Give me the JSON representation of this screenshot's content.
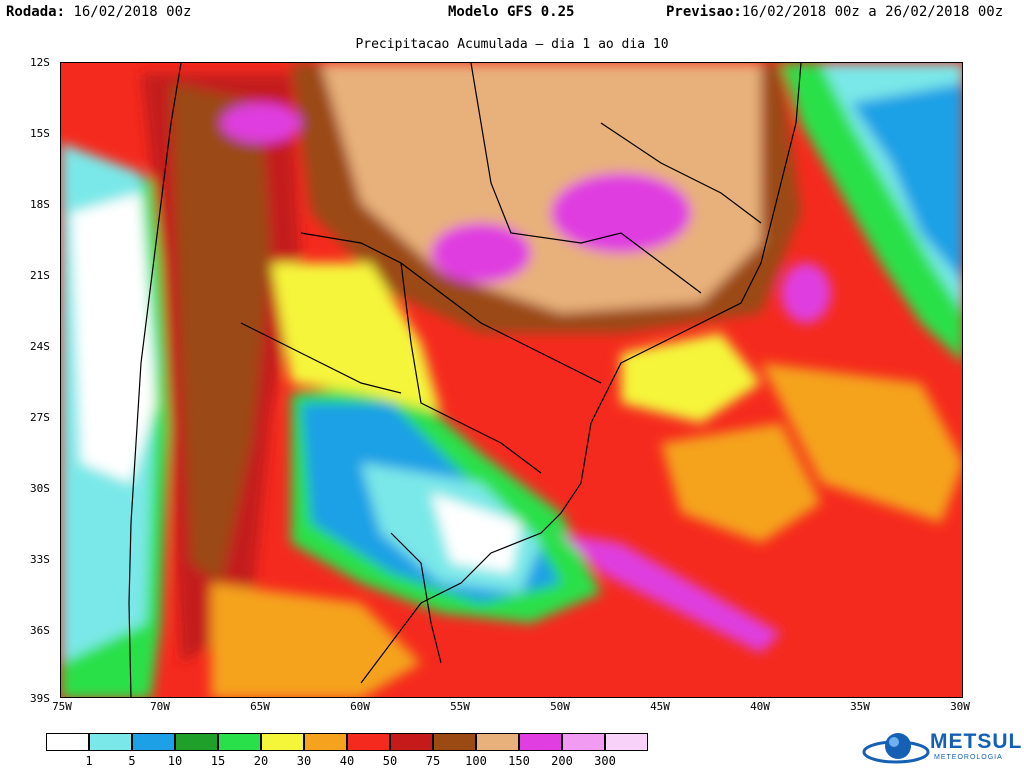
{
  "header": {
    "rodada_label": "Rodada:",
    "rodada_value": "16/02/2018 00z",
    "modelo": "Modelo GFS 0.25",
    "previsao_label": "Previsao:",
    "previsao_value": "16/02/2018 00z a 26/02/2018 00z"
  },
  "subtitle": "Precipitacao Acumulada – dia 1 ao dia 10",
  "map": {
    "lat_labels": [
      "12S",
      "15S",
      "18S",
      "21S",
      "24S",
      "27S",
      "30S",
      "33S",
      "36S",
      "39S"
    ],
    "lon_labels": [
      "75W",
      "70W",
      "65W",
      "60W",
      "55W",
      "50W",
      "45W",
      "40W",
      "35W",
      "30W"
    ]
  },
  "legend": {
    "labels": [
      "1",
      "5",
      "10",
      "15",
      "20",
      "30",
      "40",
      "50",
      "75",
      "100",
      "150",
      "200",
      "300"
    ],
    "colors": [
      "#ffffff",
      "#7ae8e8",
      "#1ea0e6",
      "#1fa02b",
      "#29e04a",
      "#f5f53a",
      "#f5a31e",
      "#f52a1e",
      "#c41a1a",
      "#9b4a14",
      "#e8b07a",
      "#e03ee0",
      "#f29bf2",
      "#f8d2f8"
    ]
  },
  "logo": {
    "name": "METSUL",
    "tagline": "METEOROLOGIA"
  }
}
